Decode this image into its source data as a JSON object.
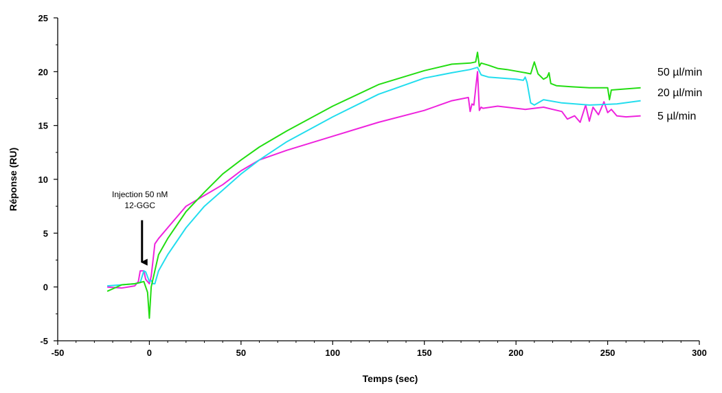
{
  "chart_data": {
    "type": "line",
    "xlabel": "Temps (sec)",
    "ylabel": "Réponse (RU)",
    "xlim": [
      -50,
      300
    ],
    "ylim": [
      -5,
      25
    ],
    "x_ticks": [
      "-50",
      "0",
      "50",
      "100",
      "150",
      "200",
      "250",
      "300"
    ],
    "y_ticks": [
      "25",
      "20",
      "15",
      "10",
      "5",
      "0",
      "-5"
    ],
    "grid": false,
    "legend_placement": "right (labels at line ends)",
    "annotation": {
      "lines": [
        "Injection 50 nM",
        "12-GGC"
      ],
      "arrow_x": -4,
      "arrow_from_y": 6.2,
      "arrow_to_y": 2.3
    },
    "series": [
      {
        "name": "50 µl/min",
        "color": "#22dd11",
        "x": [
          -23,
          -15,
          -8,
          -3,
          -1,
          0,
          1,
          3,
          5,
          10,
          20,
          30,
          40,
          50,
          60,
          75,
          100,
          125,
          150,
          165,
          175,
          178,
          179,
          180,
          181,
          185,
          190,
          195,
          205,
          208,
          210,
          212,
          215,
          217,
          218,
          219,
          222,
          230,
          240,
          248,
          250,
          251,
          252,
          260,
          268
        ],
        "y": [
          -0.4,
          0.2,
          0.3,
          0.5,
          -0.5,
          -2.9,
          0.0,
          1.5,
          3.0,
          4.5,
          7.0,
          8.8,
          10.5,
          11.8,
          13.0,
          14.5,
          16.8,
          18.8,
          20.1,
          20.7,
          20.8,
          20.9,
          21.8,
          20.5,
          20.8,
          20.6,
          20.3,
          20.2,
          19.9,
          19.8,
          20.9,
          19.8,
          19.3,
          19.5,
          19.9,
          18.9,
          18.7,
          18.6,
          18.5,
          18.5,
          18.5,
          17.4,
          18.3,
          18.4,
          18.5
        ]
      },
      {
        "name": "20 µl/min",
        "color": "#22ddee",
        "x": [
          -23,
          -15,
          -8,
          -5,
          -3,
          -2,
          0,
          1,
          2,
          3,
          5,
          10,
          20,
          30,
          40,
          50,
          60,
          75,
          100,
          125,
          150,
          165,
          175,
          179,
          181,
          185,
          200,
          204,
          205,
          206,
          208,
          210,
          215,
          225,
          240,
          255,
          268
        ],
        "y": [
          0.1,
          0.2,
          0.3,
          0.4,
          1.5,
          1.4,
          0.5,
          0.6,
          0.3,
          0.3,
          1.5,
          3.0,
          5.5,
          7.5,
          9.0,
          10.5,
          11.8,
          13.5,
          15.8,
          17.9,
          19.4,
          19.9,
          20.2,
          20.4,
          19.7,
          19.5,
          19.3,
          19.2,
          19.5,
          19.0,
          17.1,
          16.9,
          17.4,
          17.1,
          16.9,
          17.0,
          17.3
        ]
      },
      {
        "name": "5 µl/min",
        "color": "#ee22dd",
        "x": [
          -23,
          -15,
          -8,
          -6,
          -5,
          -4,
          -3,
          -2,
          0,
          1,
          2,
          3,
          5,
          10,
          20,
          30,
          40,
          50,
          60,
          75,
          100,
          125,
          150,
          165,
          174,
          175,
          176,
          177,
          179,
          180,
          181,
          182,
          190,
          200,
          205,
          210,
          215,
          220,
          225,
          228,
          232,
          235,
          238,
          240,
          242,
          245,
          248,
          250,
          252,
          255,
          260,
          268
        ],
        "y": [
          0.0,
          -0.1,
          0.1,
          0.5,
          1.5,
          1.5,
          1.5,
          0.7,
          0.3,
          1.0,
          2.5,
          4.0,
          4.5,
          5.5,
          7.5,
          8.5,
          9.5,
          10.8,
          11.8,
          12.7,
          14.0,
          15.3,
          16.4,
          17.3,
          17.6,
          16.3,
          17.0,
          16.9,
          20.0,
          16.4,
          16.7,
          16.6,
          16.8,
          16.6,
          16.5,
          16.6,
          16.7,
          16.5,
          16.3,
          15.6,
          15.9,
          15.3,
          16.9,
          15.4,
          16.7,
          16.0,
          17.2,
          16.2,
          16.5,
          15.9,
          15.8,
          15.9
        ]
      }
    ]
  }
}
